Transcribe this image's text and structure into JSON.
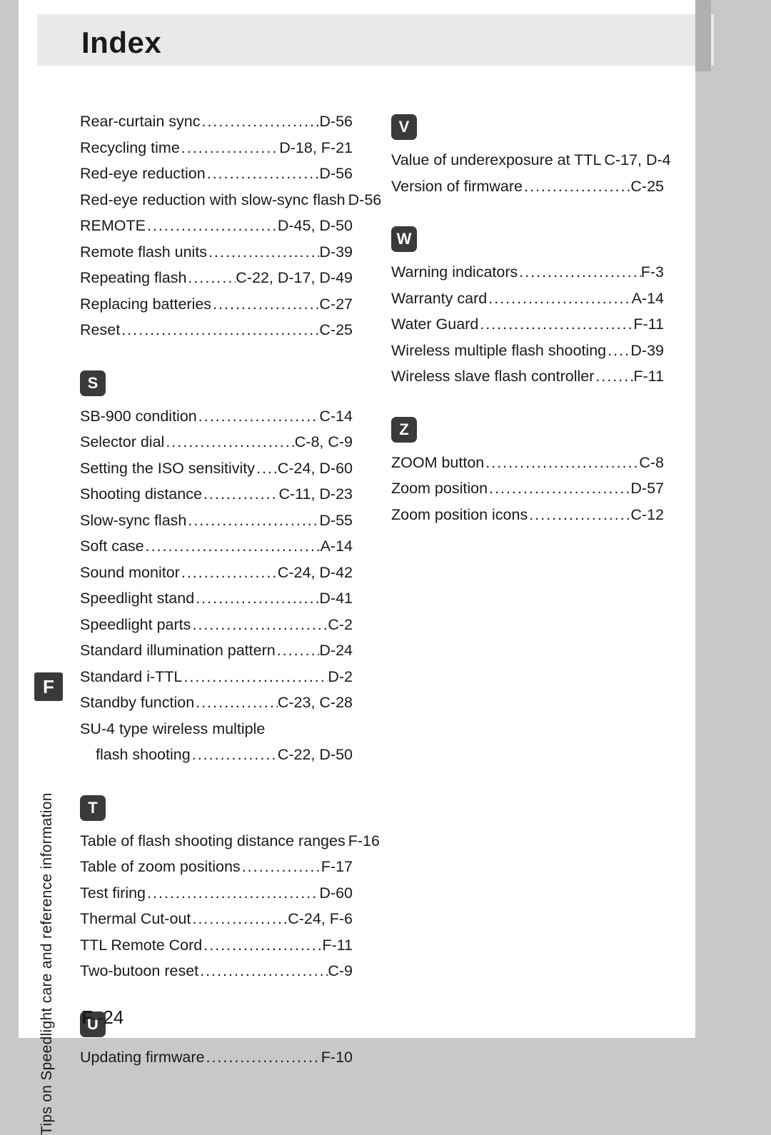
{
  "title": "Index",
  "side_tab": "F",
  "side_text": "Tips on Speedlight care and reference information",
  "page_number_prefix": "F",
  "page_number_dash": "–",
  "page_number": "24",
  "colors": {
    "page_bg": "#ffffff",
    "outer_bg": "#c8c8c8",
    "header_strip": "#e9e9e9",
    "letter_box_bg": "#3a3a3a",
    "letter_box_fg": "#ffffff",
    "text": "#1a1a1a"
  },
  "left_column": [
    {
      "type": "entry",
      "term": "Rear-curtain sync",
      "pages": "D-56"
    },
    {
      "type": "entry",
      "term": "Recycling time",
      "pages": "D-18, F-21"
    },
    {
      "type": "entry",
      "term": "Red-eye reduction",
      "pages": "D-56"
    },
    {
      "type": "entry",
      "term": "Red-eye reduction with slow-sync flash",
      "pages": "D-56",
      "tight": true
    },
    {
      "type": "entry",
      "term": "REMOTE",
      "pages": "D-45, D-50"
    },
    {
      "type": "entry",
      "term": "Remote flash units",
      "pages": "D-39"
    },
    {
      "type": "entry",
      "term": "Repeating flash",
      "pages": "C-22, D-17, D-49"
    },
    {
      "type": "entry",
      "term": "Replacing batteries",
      "pages": "C-27"
    },
    {
      "type": "entry",
      "term": "Reset",
      "pages": "C-25"
    },
    {
      "type": "section",
      "letter": "S"
    },
    {
      "type": "entry",
      "term": "SB-900 condition",
      "pages": "C-14"
    },
    {
      "type": "entry",
      "term": "Selector dial",
      "pages": "C-8, C-9"
    },
    {
      "type": "entry",
      "term": "Setting the ISO sensitivity",
      "pages": "C-24, D-60"
    },
    {
      "type": "entry",
      "term": "Shooting distance",
      "pages": "C-11, D-23"
    },
    {
      "type": "entry",
      "term": "Slow-sync flash",
      "pages": "D-55"
    },
    {
      "type": "entry",
      "term": "Soft case",
      "pages": "A-14"
    },
    {
      "type": "entry",
      "term": "Sound monitor",
      "pages": "C-24, D-42"
    },
    {
      "type": "entry",
      "term": "Speedlight stand",
      "pages": "D-41"
    },
    {
      "type": "entry",
      "term": "Speedlight parts",
      "pages": "C-2"
    },
    {
      "type": "entry",
      "term": "Standard illumination pattern",
      "pages": "D-24"
    },
    {
      "type": "entry",
      "term": "Standard i-TTL",
      "pages": "D-2"
    },
    {
      "type": "entry",
      "term": "Standby function",
      "pages": "C-23, C-28"
    },
    {
      "type": "entry",
      "term": "SU-4 type wireless multiple",
      "pages": "",
      "nodots": true
    },
    {
      "type": "entry",
      "term": "flash shooting",
      "pages": "C-22, D-50",
      "continuation": true
    },
    {
      "type": "section",
      "letter": "T"
    },
    {
      "type": "entry",
      "term": "Table of flash shooting distance ranges",
      "pages": "F-16",
      "tight": true
    },
    {
      "type": "entry",
      "term": "Table of zoom positions",
      "pages": "F-17"
    },
    {
      "type": "entry",
      "term": "Test firing",
      "pages": "D-60"
    },
    {
      "type": "entry",
      "term": "Thermal Cut-out",
      "pages": "C-24, F-6"
    },
    {
      "type": "entry",
      "term": "TTL Remote Cord",
      "pages": "F-11"
    },
    {
      "type": "entry",
      "term": "Two-butoon reset",
      "pages": "C-9"
    },
    {
      "type": "section",
      "letter": "U"
    },
    {
      "type": "entry",
      "term": "Updating firmware",
      "pages": "F-10"
    }
  ],
  "right_column": [
    {
      "type": "section",
      "letter": "V"
    },
    {
      "type": "entry",
      "term": "Value of underexposure at TTL",
      "pages": "C-17, D-4"
    },
    {
      "type": "entry",
      "term": "Version of firmware",
      "pages": "C-25"
    },
    {
      "type": "section",
      "letter": "W"
    },
    {
      "type": "entry",
      "term": "Warning indicators",
      "pages": "F-3"
    },
    {
      "type": "entry",
      "term": "Warranty card",
      "pages": "A-14"
    },
    {
      "type": "entry",
      "term": "Water Guard",
      "pages": "F-11"
    },
    {
      "type": "entry",
      "term": "Wireless multiple flash shooting",
      "pages": "D-39"
    },
    {
      "type": "entry",
      "term": "Wireless slave flash controller",
      "pages": "F-11"
    },
    {
      "type": "section",
      "letter": "Z"
    },
    {
      "type": "entry",
      "term": "ZOOM button",
      "pages": "C-8"
    },
    {
      "type": "entry",
      "term": "Zoom position",
      "pages": "D-57"
    },
    {
      "type": "entry",
      "term": "Zoom position icons",
      "pages": "C-12"
    }
  ]
}
